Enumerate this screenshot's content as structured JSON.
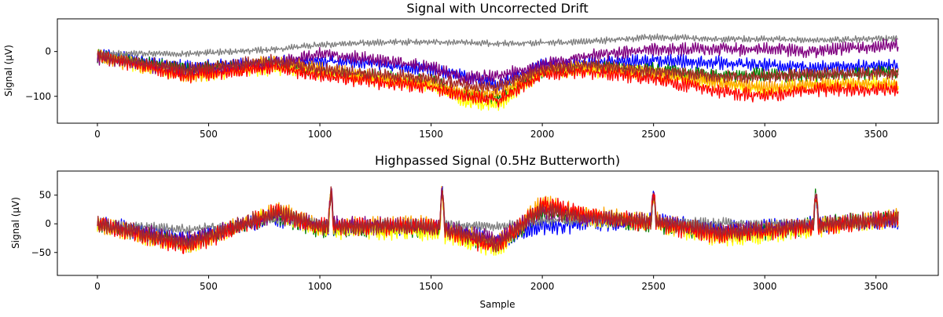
{
  "chart_data": [
    {
      "type": "line",
      "title": "Signal with Uncorrected Drift",
      "xlabel": "",
      "ylabel": "Signal (µV)",
      "xlim": [
        -180,
        3780
      ],
      "ylim": [
        -160,
        73
      ],
      "x_ticks": [
        0,
        500,
        1000,
        1500,
        2000,
        2500,
        3000,
        3500
      ],
      "y_ticks": [
        0,
        -100
      ],
      "grid": false,
      "n_samples": 3600,
      "series": [
        {
          "color": "#0000ff",
          "amp": 14,
          "points": [
            [
              0,
              -5
            ],
            [
              400,
              -35
            ],
            [
              800,
              -25
            ],
            [
              1000,
              -20
            ],
            [
              1200,
              -25
            ],
            [
              1500,
              -40
            ],
            [
              1650,
              -55
            ],
            [
              1800,
              -75
            ],
            [
              2000,
              -30
            ],
            [
              2200,
              -25
            ],
            [
              2500,
              -20
            ],
            [
              2800,
              -25
            ],
            [
              3000,
              -30
            ],
            [
              3200,
              -35
            ],
            [
              3600,
              -30
            ]
          ]
        },
        {
          "color": "#008000",
          "amp": 14,
          "points": [
            [
              0,
              -10
            ],
            [
              400,
              -40
            ],
            [
              800,
              -30
            ],
            [
              1000,
              -45
            ],
            [
              1200,
              -55
            ],
            [
              1500,
              -65
            ],
            [
              1650,
              -95
            ],
            [
              1800,
              -105
            ],
            [
              2000,
              -45
            ],
            [
              2200,
              -35
            ],
            [
              2500,
              -40
            ],
            [
              2800,
              -55
            ],
            [
              3000,
              -50
            ],
            [
              3200,
              -55
            ],
            [
              3600,
              -45
            ]
          ]
        },
        {
          "color": "#ffff00",
          "amp": 16,
          "points": [
            [
              0,
              -10
            ],
            [
              400,
              -55
            ],
            [
              800,
              -35
            ],
            [
              1000,
              -45
            ],
            [
              1200,
              -60
            ],
            [
              1500,
              -75
            ],
            [
              1650,
              -110
            ],
            [
              1800,
              -120
            ],
            [
              2000,
              -45
            ],
            [
              2200,
              -40
            ],
            [
              2500,
              -50
            ],
            [
              2800,
              -70
            ],
            [
              3000,
              -85
            ],
            [
              3200,
              -75
            ],
            [
              3600,
              -70
            ]
          ]
        },
        {
          "color": "#ffa500",
          "amp": 16,
          "points": [
            [
              0,
              -10
            ],
            [
              400,
              -55
            ],
            [
              800,
              -20
            ],
            [
              1000,
              -40
            ],
            [
              1200,
              -55
            ],
            [
              1500,
              -70
            ],
            [
              1650,
              -90
            ],
            [
              1800,
              -95
            ],
            [
              2000,
              -40
            ],
            [
              2200,
              -35
            ],
            [
              2500,
              -50
            ],
            [
              2800,
              -70
            ],
            [
              3000,
              -80
            ],
            [
              3200,
              -75
            ],
            [
              3600,
              -75
            ]
          ]
        },
        {
          "color": "#808080",
          "amp": 7,
          "points": [
            [
              0,
              -5
            ],
            [
              400,
              -5
            ],
            [
              800,
              5
            ],
            [
              1000,
              15
            ],
            [
              1200,
              20
            ],
            [
              1500,
              22
            ],
            [
              1800,
              18
            ],
            [
              2000,
              20
            ],
            [
              2200,
              22
            ],
            [
              2500,
              32
            ],
            [
              2800,
              28
            ],
            [
              3000,
              28
            ],
            [
              3200,
              25
            ],
            [
              3600,
              30
            ]
          ]
        },
        {
          "color": "#800080",
          "amp": 14,
          "points": [
            [
              0,
              -15
            ],
            [
              400,
              -45
            ],
            [
              800,
              -25
            ],
            [
              1000,
              -5
            ],
            [
              1200,
              -15
            ],
            [
              1500,
              -35
            ],
            [
              1650,
              -60
            ],
            [
              1800,
              -55
            ],
            [
              2000,
              -30
            ],
            [
              2200,
              -10
            ],
            [
              2500,
              5
            ],
            [
              2800,
              5
            ],
            [
              3000,
              5
            ],
            [
              3200,
              0
            ],
            [
              3600,
              15
            ]
          ]
        },
        {
          "color": "#ff0000",
          "amp": 15,
          "points": [
            [
              0,
              -10
            ],
            [
              400,
              -55
            ],
            [
              800,
              -35
            ],
            [
              1000,
              -55
            ],
            [
              1200,
              -65
            ],
            [
              1500,
              -80
            ],
            [
              1650,
              -100
            ],
            [
              1800,
              -110
            ],
            [
              2000,
              -50
            ],
            [
              2200,
              -45
            ],
            [
              2500,
              -60
            ],
            [
              2800,
              -90
            ],
            [
              3000,
              -100
            ],
            [
              3200,
              -85
            ],
            [
              3600,
              -85
            ]
          ]
        },
        {
          "color": "#a52a2a",
          "amp": 14,
          "points": [
            [
              0,
              -10
            ],
            [
              400,
              -40
            ],
            [
              800,
              -20
            ],
            [
              1000,
              -40
            ],
            [
              1200,
              -50
            ],
            [
              1500,
              -60
            ],
            [
              1650,
              -75
            ],
            [
              1800,
              -80
            ],
            [
              2000,
              -40
            ],
            [
              2200,
              -30
            ],
            [
              2500,
              -45
            ],
            [
              2800,
              -55
            ],
            [
              3000,
              -55
            ],
            [
              3200,
              -50
            ],
            [
              3600,
              -50
            ]
          ]
        }
      ]
    },
    {
      "type": "line",
      "title": "Highpassed Signal (0.5Hz Butterworth)",
      "xlabel": "Sample",
      "ylabel": "Signal (µV)",
      "xlim": [
        -180,
        3780
      ],
      "ylim": [
        -90,
        92
      ],
      "x_ticks": [
        0,
        500,
        1000,
        1500,
        2000,
        2500,
        3000,
        3500
      ],
      "y_ticks": [
        50,
        0,
        -50
      ],
      "grid": false,
      "n_samples": 3600,
      "series": [
        {
          "color": "#0000ff",
          "amp": 14,
          "points": [
            [
              0,
              0
            ],
            [
              400,
              -25
            ],
            [
              800,
              10
            ],
            [
              1000,
              -5
            ],
            [
              1500,
              -5
            ],
            [
              1650,
              -15
            ],
            [
              1800,
              -30
            ],
            [
              2000,
              -5
            ],
            [
              2200,
              0
            ],
            [
              2500,
              5
            ],
            [
              2800,
              -10
            ],
            [
              3000,
              -5
            ],
            [
              3600,
              5
            ]
          ]
        },
        {
          "color": "#008000",
          "amp": 14,
          "points": [
            [
              0,
              0
            ],
            [
              400,
              -35
            ],
            [
              800,
              15
            ],
            [
              1000,
              -10
            ],
            [
              1500,
              -10
            ],
            [
              1650,
              -20
            ],
            [
              1800,
              -40
            ],
            [
              2000,
              20
            ],
            [
              2200,
              10
            ],
            [
              2500,
              0
            ],
            [
              2800,
              -20
            ],
            [
              3000,
              -15
            ],
            [
              3600,
              15
            ]
          ]
        },
        {
          "color": "#ffff00",
          "amp": 15,
          "points": [
            [
              0,
              0
            ],
            [
              400,
              -40
            ],
            [
              800,
              20
            ],
            [
              1000,
              -10
            ],
            [
              1500,
              -15
            ],
            [
              1650,
              -30
            ],
            [
              1800,
              -45
            ],
            [
              2000,
              30
            ],
            [
              2200,
              10
            ],
            [
              2500,
              0
            ],
            [
              2800,
              -25
            ],
            [
              3000,
              -20
            ],
            [
              3600,
              10
            ]
          ]
        },
        {
          "color": "#ffa500",
          "amp": 15,
          "points": [
            [
              0,
              0
            ],
            [
              400,
              -40
            ],
            [
              800,
              25
            ],
            [
              1000,
              -5
            ],
            [
              1500,
              0
            ],
            [
              1650,
              -20
            ],
            [
              1800,
              -30
            ],
            [
              2000,
              35
            ],
            [
              2200,
              15
            ],
            [
              2500,
              5
            ],
            [
              2800,
              -20
            ],
            [
              3000,
              -10
            ],
            [
              3600,
              10
            ]
          ]
        },
        {
          "color": "#808080",
          "amp": 8,
          "points": [
            [
              0,
              0
            ],
            [
              400,
              -10
            ],
            [
              800,
              5
            ],
            [
              1000,
              0
            ],
            [
              1500,
              0
            ],
            [
              1800,
              -5
            ],
            [
              2000,
              5
            ],
            [
              2500,
              5
            ],
            [
              3000,
              0
            ],
            [
              3600,
              5
            ]
          ]
        },
        {
          "color": "#800080",
          "amp": 14,
          "points": [
            [
              0,
              0
            ],
            [
              400,
              -30
            ],
            [
              800,
              15
            ],
            [
              1000,
              0
            ],
            [
              1500,
              -5
            ],
            [
              1650,
              -15
            ],
            [
              1800,
              -30
            ],
            [
              2000,
              25
            ],
            [
              2200,
              10
            ],
            [
              2500,
              5
            ],
            [
              2800,
              -15
            ],
            [
              3000,
              -10
            ],
            [
              3600,
              10
            ]
          ]
        },
        {
          "color": "#ff0000",
          "amp": 15,
          "points": [
            [
              0,
              0
            ],
            [
              400,
              -40
            ],
            [
              800,
              20
            ],
            [
              1000,
              -5
            ],
            [
              1500,
              -5
            ],
            [
              1650,
              -25
            ],
            [
              1800,
              -40
            ],
            [
              2000,
              35
            ],
            [
              2200,
              15
            ],
            [
              2500,
              0
            ],
            [
              2800,
              -20
            ],
            [
              3000,
              -15
            ],
            [
              3600,
              10
            ]
          ]
        },
        {
          "color": "#a52a2a",
          "amp": 14,
          "points": [
            [
              0,
              0
            ],
            [
              400,
              -35
            ],
            [
              800,
              20
            ],
            [
              1000,
              -5
            ],
            [
              1500,
              -5
            ],
            [
              1650,
              -20
            ],
            [
              1800,
              -35
            ],
            [
              2000,
              25
            ],
            [
              2200,
              10
            ],
            [
              2500,
              5
            ],
            [
              2800,
              -15
            ],
            [
              3000,
              -10
            ],
            [
              3600,
              10
            ]
          ]
        }
      ],
      "spikes": [
        {
          "x": 1050,
          "value": 70
        },
        {
          "x": 1550,
          "value": 75
        },
        {
          "x": 2500,
          "value": 65
        },
        {
          "x": 3230,
          "value": 65
        }
      ]
    }
  ]
}
